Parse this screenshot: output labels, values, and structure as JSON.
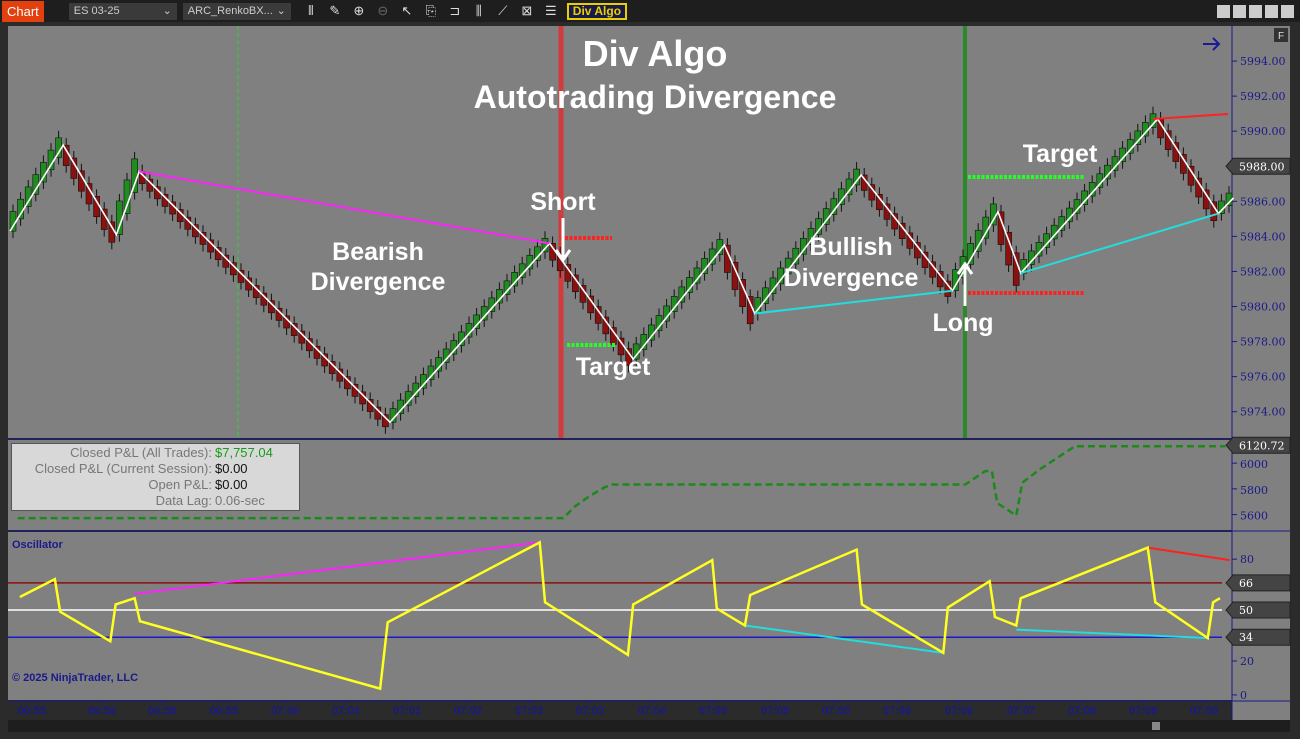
{
  "toolbar": {
    "chart_label": "Chart",
    "instrument": "ES 03-25",
    "bar_type": "ARC_RenkoBX...",
    "indicator_button": "Div Algo",
    "icons": [
      "bar-style-icon",
      "draw-icon",
      "zoom-in-icon",
      "zoom-out-icon",
      "pointer-icon",
      "data-box-icon",
      "properties-icon",
      "indicators-icon",
      "strategies-icon",
      "templates-icon",
      "list-icon"
    ]
  },
  "title": {
    "line1": "Div Algo",
    "line2": "Autotrading Divergence"
  },
  "annotations": {
    "bearish1": "Bearish",
    "bearish2": "Divergence",
    "short": "Short",
    "target1": "Target",
    "bullish1": "Bullish",
    "bullish2": "Divergence",
    "long": "Long",
    "target2": "Target"
  },
  "price_axis": {
    "ticks": [
      5974,
      5976,
      5978,
      5980,
      5982,
      5984,
      5986,
      5988,
      5990,
      5992,
      5994
    ],
    "current": "5988.00",
    "flag": "F"
  },
  "pnl": {
    "rows": [
      {
        "k": "Closed P&L (All Trades):",
        "v": "$7,757.04",
        "color": "#1a9a1a"
      },
      {
        "k": "Closed P&L (Current Session):",
        "v": "$0.00"
      },
      {
        "k": "Open P&L:",
        "v": "$0.00"
      },
      {
        "k": "Data Lag:",
        "v": "0.06-sec",
        "color": "#777"
      }
    ],
    "axis_ticks": [
      5600,
      5800,
      6000
    ],
    "current": "6120.72"
  },
  "oscillator": {
    "label": "Oscillator",
    "axis_ticks": [
      0,
      20,
      80
    ],
    "levels": [
      66,
      50,
      34
    ],
    "copyright": "© 2025 NinjaTrader, LLC"
  },
  "time_axis": [
    "06:55",
    "06:56",
    "06:58",
    "06:59",
    "07:00",
    "07:01",
    "07:01",
    "07:02",
    "07:03",
    "07:03",
    "07:04",
    "07:05",
    "07:05",
    "07:05",
    "07:06",
    "07:06",
    "07:07",
    "07:08",
    "07:08",
    "07:08"
  ],
  "colors": {
    "bg": "#808080",
    "up": "#1e8c1e",
    "down": "#8b1010",
    "zigzag": "#ffffff",
    "bear_div": "#ff22ff",
    "bull_div": "#22dddd",
    "osc": "#ffff20",
    "axis": "#1a1a8a"
  },
  "chart_data": [
    {
      "type": "line",
      "name": "price",
      "zigzag": [
        [
          0,
          5984.3
        ],
        [
          7,
          5989.2
        ],
        [
          14,
          5984.1
        ],
        [
          17,
          5987.7
        ],
        [
          50,
          5973.4
        ],
        [
          71,
          5983.6
        ],
        [
          82,
          5977.0
        ],
        [
          94,
          5983.5
        ],
        [
          98,
          5979.6
        ],
        [
          112,
          5987.5
        ],
        [
          124,
          5980.9
        ],
        [
          130,
          5985.4
        ],
        [
          133,
          5981.9
        ],
        [
          151,
          5990.7
        ],
        [
          159,
          5985.3
        ],
        [
          161,
          5986.2
        ]
      ],
      "divergence_lines": {
        "bearish": [
          [
            17,
            5987.7
          ],
          [
            71,
            5983.6
          ]
        ],
        "bullish": [
          [
            [
              98,
              5979.6
            ],
            [
              124,
              5980.9
            ]
          ],
          [
            [
              133,
              5981.9
            ],
            [
              159,
              5985.3
            ]
          ]
        ]
      },
      "ylim": [
        5972.5,
        5996
      ]
    },
    {
      "type": "line",
      "name": "equity",
      "points": [
        [
          1,
          5572
        ],
        [
          72.8,
          5572
        ],
        [
          74.3,
          5662
        ],
        [
          76.3,
          5745
        ],
        [
          78.3,
          5814
        ],
        [
          79.2,
          5834
        ],
        [
          125.7,
          5834
        ],
        [
          128.3,
          5938
        ],
        [
          129.2,
          5938
        ],
        [
          129.9,
          5690
        ],
        [
          132.4,
          5593
        ],
        [
          133.2,
          5848
        ],
        [
          135.5,
          5952
        ],
        [
          140.1,
          6131
        ],
        [
          159.9,
          6131
        ]
      ],
      "ylim": [
        5480,
        6180
      ]
    },
    {
      "type": "line",
      "name": "oscillator",
      "points": [
        [
          1.3,
          57.7
        ],
        [
          5.9,
          68.2
        ],
        [
          6.6,
          49
        ],
        [
          13.2,
          31.6
        ],
        [
          13.9,
          53.3
        ],
        [
          16.4,
          57
        ],
        [
          17.1,
          43.4
        ],
        [
          48.7,
          3.7
        ],
        [
          49.7,
          42.8
        ],
        [
          69.7,
          89.9
        ],
        [
          70.4,
          54.6
        ],
        [
          81.3,
          23.6
        ],
        [
          82,
          53.3
        ],
        [
          92.4,
          79.4
        ],
        [
          93,
          50.9
        ],
        [
          96.7,
          40.9
        ],
        [
          97.4,
          58.9
        ],
        [
          111.4,
          85.6
        ],
        [
          112.1,
          53.3
        ],
        [
          122.8,
          24.8
        ],
        [
          123.4,
          51.5
        ],
        [
          128.9,
          67
        ],
        [
          129.6,
          45.9
        ],
        [
          132.4,
          40.9
        ],
        [
          133,
          57
        ],
        [
          149.7,
          86.8
        ],
        [
          150.7,
          54.6
        ],
        [
          157.6,
          33.5
        ],
        [
          158.3,
          54.6
        ],
        [
          159.2,
          57
        ]
      ],
      "divergence_lines": {
        "bearish": [
          [
            16.4,
            59.5
          ],
          [
            69.7,
            89.9
          ]
        ],
        "bullish": [
          [
            [
              96.7,
              40.9
            ],
            [
              122.8,
              24.8
            ]
          ],
          [
            [
              132.4,
              38.5
            ],
            [
              157.6,
              33.5
            ]
          ]
        ],
        "red": [
          [
            149.7,
            86.8
          ],
          [
            160.5,
            79.4
          ]
        ]
      },
      "ylim": [
        -3,
        96
      ]
    }
  ]
}
